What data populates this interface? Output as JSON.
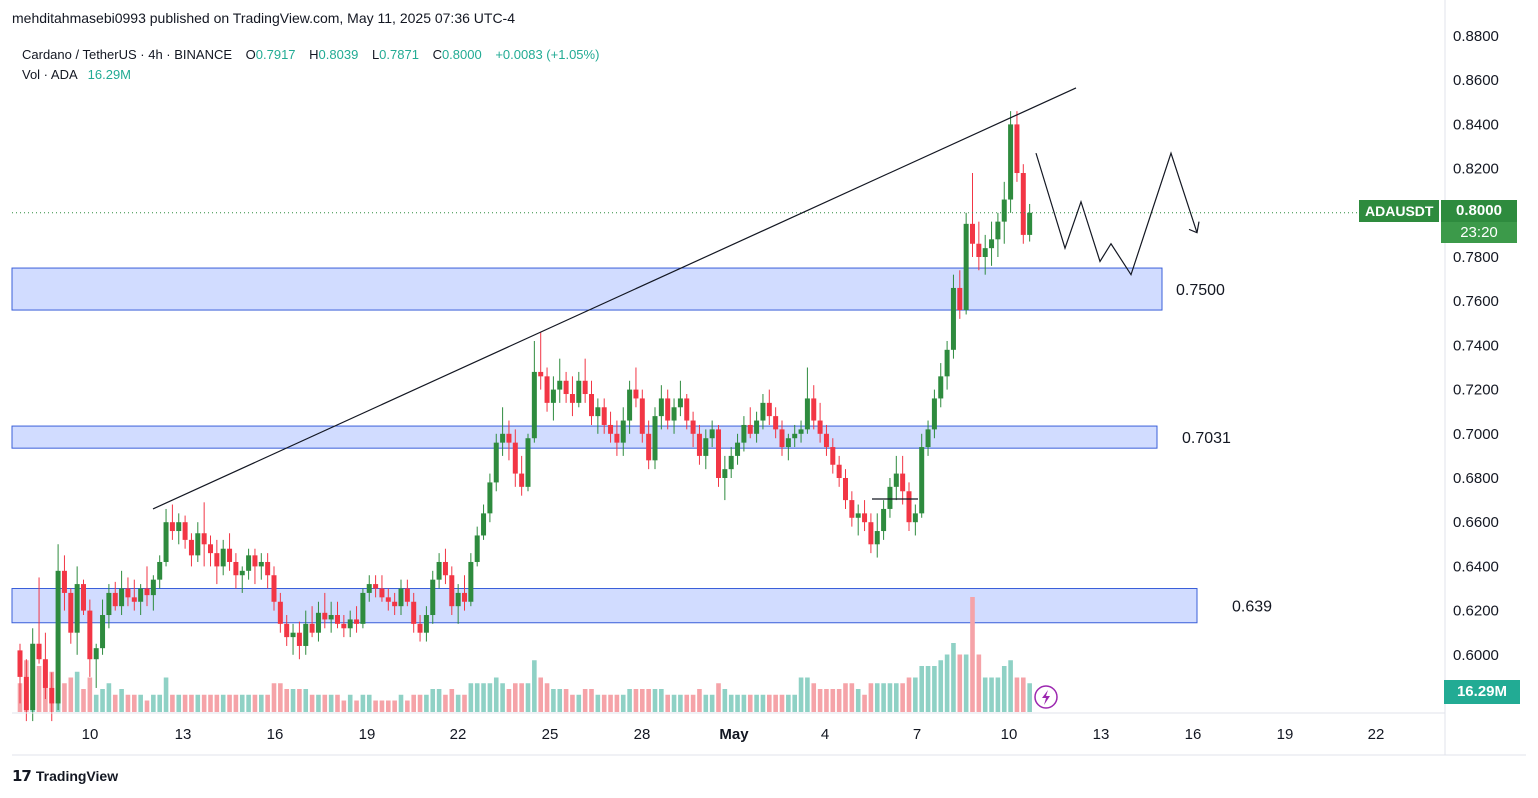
{
  "header": {
    "published": "mehditahmasebi0993 published on TradingView.com, May 11, 2025 07:36 UTC-4"
  },
  "legend": {
    "symbol_line": "Cardano / TetherUS · 4h · BINANCE",
    "open_label": "O",
    "open": "0.7917",
    "high_label": "H",
    "high": "0.8039",
    "low_label": "L",
    "low": "0.7871",
    "close_label": "C",
    "close": "0.8000",
    "change": "+0.0083 (+1.05%)",
    "vol_label": "Vol · ADA",
    "vol": "16.29M"
  },
  "badges": {
    "symbol": "ADAUSDT",
    "price": "0.8000",
    "countdown": "23:20",
    "volume": "16.29M"
  },
  "footer": {
    "brand": "TradingView",
    "logo_text": "17"
  },
  "colors": {
    "up": "#2e8b3e",
    "down": "#f23645",
    "vol_up": "#8fd1c5",
    "vol_down": "#f5a3a8",
    "zone_fill": "#d1dcff",
    "zone_stroke": "#3a5fd9",
    "price_line": "#2e8b3e"
  },
  "chart_data": {
    "type": "candlestick",
    "y_axis": {
      "ticks": [
        "0.8800",
        "0.8600",
        "0.8400",
        "0.8200",
        "0.8000",
        "0.7800",
        "0.7600",
        "0.7400",
        "0.7200",
        "0.7000",
        "0.6800",
        "0.6600",
        "0.6400",
        "0.6200",
        "0.6000"
      ],
      "range": [
        0.585,
        0.88
      ]
    },
    "x_axis": {
      "ticks": [
        "10",
        "13",
        "16",
        "19",
        "22",
        "25",
        "28",
        "May",
        "4",
        "7",
        "10",
        "13",
        "16",
        "19",
        "22"
      ]
    },
    "zones": [
      {
        "label": "0.7500",
        "low": 0.756,
        "high": 0.775
      },
      {
        "label": "0.7031",
        "low": 0.6935,
        "high": 0.7035
      },
      {
        "label": "0.639",
        "low": 0.6145,
        "high": 0.63
      }
    ],
    "trendline": {
      "from": [
        "12",
        0.666
      ],
      "to": [
        "11",
        0.855
      ]
    },
    "projection": [
      0.827,
      0.784,
      0.805,
      0.778,
      0.786,
      0.772,
      0.827,
      0.791
    ],
    "last_close": 0.8,
    "candles": [
      [
        0.602,
        0.605,
        0.578,
        0.59,
        5
      ],
      [
        0.59,
        0.598,
        0.57,
        0.575,
        9
      ],
      [
        0.575,
        0.612,
        0.57,
        0.605,
        6
      ],
      [
        0.605,
        0.635,
        0.596,
        0.598,
        8
      ],
      [
        0.598,
        0.61,
        0.58,
        0.585,
        5
      ],
      [
        0.585,
        0.592,
        0.57,
        0.578,
        7
      ],
      [
        0.578,
        0.65,
        0.575,
        0.638,
        14
      ],
      [
        0.638,
        0.645,
        0.62,
        0.628,
        5
      ],
      [
        0.628,
        0.63,
        0.605,
        0.61,
        6
      ],
      [
        0.61,
        0.64,
        0.6,
        0.632,
        7
      ],
      [
        0.632,
        0.634,
        0.618,
        0.62,
        4
      ],
      [
        0.62,
        0.625,
        0.59,
        0.598,
        6
      ],
      [
        0.598,
        0.605,
        0.585,
        0.603,
        3
      ],
      [
        0.603,
        0.625,
        0.6,
        0.618,
        4
      ],
      [
        0.618,
        0.632,
        0.612,
        0.628,
        5
      ],
      [
        0.628,
        0.633,
        0.62,
        0.622,
        3
      ],
      [
        0.622,
        0.638,
        0.618,
        0.63,
        4
      ],
      [
        0.63,
        0.635,
        0.622,
        0.626,
        3
      ],
      [
        0.626,
        0.634,
        0.62,
        0.624,
        3
      ],
      [
        0.624,
        0.632,
        0.618,
        0.63,
        3
      ],
      [
        0.63,
        0.64,
        0.622,
        0.627,
        2
      ],
      [
        0.627,
        0.636,
        0.62,
        0.634,
        3
      ],
      [
        0.634,
        0.645,
        0.63,
        0.642,
        3
      ],
      [
        0.642,
        0.666,
        0.64,
        0.66,
        6
      ],
      [
        0.66,
        0.668,
        0.652,
        0.656,
        3
      ],
      [
        0.656,
        0.664,
        0.65,
        0.66,
        3
      ],
      [
        0.66,
        0.663,
        0.648,
        0.652,
        3
      ],
      [
        0.652,
        0.655,
        0.64,
        0.645,
        3
      ],
      [
        0.645,
        0.66,
        0.642,
        0.655,
        3
      ],
      [
        0.655,
        0.669,
        0.64,
        0.65,
        3
      ],
      [
        0.65,
        0.654,
        0.64,
        0.646,
        3
      ],
      [
        0.646,
        0.652,
        0.632,
        0.64,
        3
      ],
      [
        0.64,
        0.652,
        0.636,
        0.648,
        3
      ],
      [
        0.648,
        0.655,
        0.638,
        0.642,
        3
      ],
      [
        0.642,
        0.646,
        0.63,
        0.636,
        3
      ],
      [
        0.636,
        0.64,
        0.628,
        0.638,
        3
      ],
      [
        0.638,
        0.648,
        0.634,
        0.645,
        3
      ],
      [
        0.645,
        0.648,
        0.632,
        0.64,
        3
      ],
      [
        0.64,
        0.646,
        0.634,
        0.642,
        3
      ],
      [
        0.642,
        0.646,
        0.63,
        0.636,
        3
      ],
      [
        0.636,
        0.64,
        0.62,
        0.624,
        5
      ],
      [
        0.624,
        0.628,
        0.61,
        0.614,
        5
      ],
      [
        0.614,
        0.618,
        0.604,
        0.608,
        4
      ],
      [
        0.608,
        0.614,
        0.6,
        0.61,
        4
      ],
      [
        0.61,
        0.615,
        0.598,
        0.604,
        4
      ],
      [
        0.604,
        0.62,
        0.6,
        0.614,
        4
      ],
      [
        0.614,
        0.622,
        0.608,
        0.61,
        3
      ],
      [
        0.61,
        0.624,
        0.606,
        0.619,
        3
      ],
      [
        0.619,
        0.628,
        0.612,
        0.616,
        3
      ],
      [
        0.616,
        0.624,
        0.61,
        0.618,
        3
      ],
      [
        0.618,
        0.624,
        0.612,
        0.614,
        3
      ],
      [
        0.614,
        0.618,
        0.608,
        0.612,
        2
      ],
      [
        0.612,
        0.62,
        0.608,
        0.616,
        3
      ],
      [
        0.616,
        0.622,
        0.61,
        0.614,
        2
      ],
      [
        0.614,
        0.63,
        0.612,
        0.628,
        3
      ],
      [
        0.628,
        0.636,
        0.624,
        0.632,
        3
      ],
      [
        0.632,
        0.636,
        0.626,
        0.63,
        2
      ],
      [
        0.63,
        0.636,
        0.624,
        0.626,
        2
      ],
      [
        0.626,
        0.63,
        0.62,
        0.624,
        2
      ],
      [
        0.624,
        0.628,
        0.618,
        0.622,
        2
      ],
      [
        0.622,
        0.634,
        0.618,
        0.63,
        3
      ],
      [
        0.63,
        0.634,
        0.622,
        0.624,
        2
      ],
      [
        0.624,
        0.628,
        0.61,
        0.614,
        3
      ],
      [
        0.614,
        0.618,
        0.606,
        0.61,
        3
      ],
      [
        0.61,
        0.622,
        0.606,
        0.618,
        3
      ],
      [
        0.618,
        0.638,
        0.614,
        0.634,
        4
      ],
      [
        0.634,
        0.646,
        0.63,
        0.642,
        4
      ],
      [
        0.642,
        0.648,
        0.632,
        0.636,
        3
      ],
      [
        0.636,
        0.64,
        0.618,
        0.622,
        4
      ],
      [
        0.622,
        0.632,
        0.614,
        0.628,
        3
      ],
      [
        0.628,
        0.636,
        0.62,
        0.624,
        3
      ],
      [
        0.624,
        0.646,
        0.622,
        0.642,
        5
      ],
      [
        0.642,
        0.658,
        0.64,
        0.654,
        5
      ],
      [
        0.654,
        0.668,
        0.652,
        0.664,
        5
      ],
      [
        0.664,
        0.682,
        0.66,
        0.678,
        5
      ],
      [
        0.678,
        0.7,
        0.674,
        0.696,
        6
      ],
      [
        0.696,
        0.712,
        0.69,
        0.7,
        5
      ],
      [
        0.7,
        0.706,
        0.688,
        0.696,
        4
      ],
      [
        0.696,
        0.702,
        0.676,
        0.682,
        5
      ],
      [
        0.682,
        0.69,
        0.672,
        0.676,
        5
      ],
      [
        0.676,
        0.7,
        0.674,
        0.698,
        5
      ],
      [
        0.698,
        0.742,
        0.696,
        0.728,
        9
      ],
      [
        0.728,
        0.746,
        0.72,
        0.726,
        6
      ],
      [
        0.726,
        0.73,
        0.71,
        0.714,
        5
      ],
      [
        0.714,
        0.726,
        0.706,
        0.72,
        4
      ],
      [
        0.72,
        0.734,
        0.714,
        0.724,
        4
      ],
      [
        0.724,
        0.728,
        0.714,
        0.718,
        4
      ],
      [
        0.718,
        0.726,
        0.708,
        0.714,
        3
      ],
      [
        0.714,
        0.728,
        0.712,
        0.724,
        3
      ],
      [
        0.724,
        0.734,
        0.714,
        0.718,
        4
      ],
      [
        0.718,
        0.724,
        0.704,
        0.708,
        4
      ],
      [
        0.708,
        0.716,
        0.7,
        0.712,
        3
      ],
      [
        0.712,
        0.716,
        0.7,
        0.704,
        3
      ],
      [
        0.704,
        0.71,
        0.696,
        0.7,
        3
      ],
      [
        0.7,
        0.706,
        0.69,
        0.696,
        3
      ],
      [
        0.696,
        0.712,
        0.69,
        0.706,
        3
      ],
      [
        0.706,
        0.724,
        0.7,
        0.72,
        4
      ],
      [
        0.72,
        0.73,
        0.712,
        0.716,
        4
      ],
      [
        0.716,
        0.72,
        0.696,
        0.7,
        4
      ],
      [
        0.7,
        0.706,
        0.684,
        0.688,
        4
      ],
      [
        0.688,
        0.712,
        0.684,
        0.708,
        4
      ],
      [
        0.708,
        0.722,
        0.702,
        0.716,
        4
      ],
      [
        0.716,
        0.72,
        0.702,
        0.706,
        3
      ],
      [
        0.706,
        0.716,
        0.7,
        0.712,
        3
      ],
      [
        0.712,
        0.724,
        0.708,
        0.716,
        3
      ],
      [
        0.716,
        0.718,
        0.702,
        0.706,
        3
      ],
      [
        0.706,
        0.71,
        0.694,
        0.7,
        3
      ],
      [
        0.7,
        0.704,
        0.686,
        0.69,
        4
      ],
      [
        0.69,
        0.702,
        0.684,
        0.698,
        3
      ],
      [
        0.698,
        0.706,
        0.694,
        0.702,
        3
      ],
      [
        0.702,
        0.704,
        0.676,
        0.68,
        5
      ],
      [
        0.68,
        0.69,
        0.67,
        0.684,
        4
      ],
      [
        0.684,
        0.694,
        0.68,
        0.69,
        3
      ],
      [
        0.69,
        0.7,
        0.686,
        0.696,
        3
      ],
      [
        0.696,
        0.708,
        0.692,
        0.704,
        3
      ],
      [
        0.704,
        0.712,
        0.698,
        0.7,
        3
      ],
      [
        0.7,
        0.71,
        0.696,
        0.706,
        3
      ],
      [
        0.706,
        0.718,
        0.702,
        0.714,
        3
      ],
      [
        0.714,
        0.72,
        0.704,
        0.708,
        3
      ],
      [
        0.708,
        0.712,
        0.698,
        0.702,
        3
      ],
      [
        0.702,
        0.706,
        0.69,
        0.694,
        3
      ],
      [
        0.694,
        0.7,
        0.688,
        0.698,
        3
      ],
      [
        0.698,
        0.704,
        0.694,
        0.7,
        3
      ],
      [
        0.7,
        0.706,
        0.696,
        0.702,
        6
      ],
      [
        0.702,
        0.73,
        0.7,
        0.716,
        6
      ],
      [
        0.716,
        0.722,
        0.702,
        0.706,
        5
      ],
      [
        0.706,
        0.714,
        0.696,
        0.7,
        4
      ],
      [
        0.7,
        0.704,
        0.69,
        0.694,
        4
      ],
      [
        0.694,
        0.698,
        0.682,
        0.686,
        4
      ],
      [
        0.686,
        0.69,
        0.676,
        0.68,
        4
      ],
      [
        0.68,
        0.684,
        0.666,
        0.67,
        5
      ],
      [
        0.67,
        0.674,
        0.658,
        0.662,
        5
      ],
      [
        0.662,
        0.668,
        0.654,
        0.664,
        4
      ],
      [
        0.664,
        0.67,
        0.656,
        0.66,
        3
      ],
      [
        0.66,
        0.664,
        0.646,
        0.65,
        5
      ],
      [
        0.65,
        0.664,
        0.644,
        0.656,
        5
      ],
      [
        0.656,
        0.67,
        0.652,
        0.666,
        5
      ],
      [
        0.666,
        0.68,
        0.662,
        0.676,
        5
      ],
      [
        0.676,
        0.69,
        0.67,
        0.682,
        5
      ],
      [
        0.682,
        0.69,
        0.668,
        0.674,
        5
      ],
      [
        0.674,
        0.678,
        0.656,
        0.66,
        6
      ],
      [
        0.66,
        0.668,
        0.654,
        0.664,
        6
      ],
      [
        0.664,
        0.7,
        0.662,
        0.694,
        8
      ],
      [
        0.694,
        0.706,
        0.69,
        0.702,
        8
      ],
      [
        0.702,
        0.72,
        0.698,
        0.716,
        8
      ],
      [
        0.716,
        0.732,
        0.712,
        0.726,
        9
      ],
      [
        0.726,
        0.742,
        0.72,
        0.738,
        10
      ],
      [
        0.738,
        0.772,
        0.734,
        0.766,
        12
      ],
      [
        0.766,
        0.774,
        0.752,
        0.756,
        10
      ],
      [
        0.756,
        0.8,
        0.754,
        0.795,
        10
      ],
      [
        0.795,
        0.818,
        0.78,
        0.786,
        20
      ],
      [
        0.786,
        0.796,
        0.774,
        0.78,
        10
      ],
      [
        0.78,
        0.79,
        0.772,
        0.784,
        6
      ],
      [
        0.784,
        0.796,
        0.776,
        0.788,
        6
      ],
      [
        0.788,
        0.8,
        0.78,
        0.796,
        6
      ],
      [
        0.796,
        0.814,
        0.786,
        0.806,
        8
      ],
      [
        0.806,
        0.846,
        0.8,
        0.84,
        9
      ],
      [
        0.84,
        0.846,
        0.814,
        0.818,
        6
      ],
      [
        0.818,
        0.822,
        0.786,
        0.79,
        6
      ],
      [
        0.79,
        0.804,
        0.787,
        0.8,
        5
      ]
    ]
  }
}
